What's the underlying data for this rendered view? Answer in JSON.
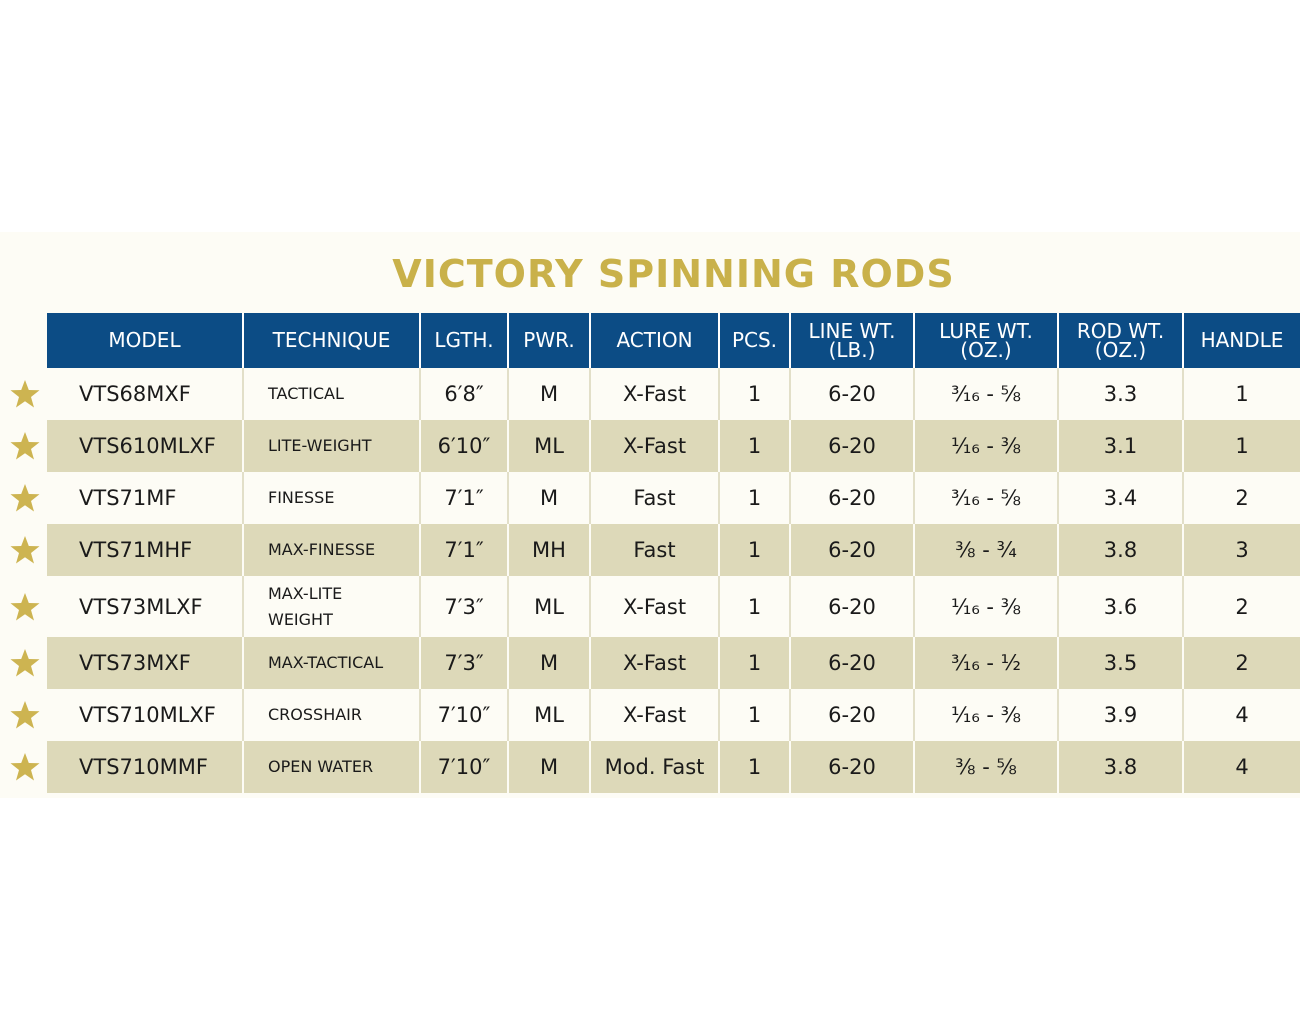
{
  "title": "VICTORY SPINNING RODS",
  "table": {
    "headers": [
      "MODEL",
      "TECHNIQUE",
      "LGTH.",
      "PWR.",
      "ACTION",
      "PCS.",
      "LINE WT.\n(LB.)",
      "LURE WT.\n(OZ.)",
      "ROD WT.\n(OZ.)",
      "HANDLE"
    ],
    "rows": [
      [
        "VTS68MXF",
        "TACTICAL",
        "6′8″",
        "M",
        "X-Fast",
        "1",
        "6-20",
        "³⁄₁₆ - ⅝",
        "3.3",
        "1"
      ],
      [
        "VTS610MLXF",
        "LITE-WEIGHT",
        "6′10″",
        "ML",
        "X-Fast",
        "1",
        "6-20",
        "¹⁄₁₆ - ⅜",
        "3.1",
        "1"
      ],
      [
        "VTS71MF",
        "FINESSE",
        "7′1″",
        "M",
        "Fast",
        "1",
        "6-20",
        "³⁄₁₆ - ⅝",
        "3.4",
        "2"
      ],
      [
        "VTS71MHF",
        "MAX-FINESSE",
        "7′1″",
        "MH",
        "Fast",
        "1",
        "6-20",
        "⅜ - ¾",
        "3.8",
        "3"
      ],
      [
        "VTS73MLXF",
        "MAX-LITE\nWEIGHT",
        "7′3″",
        "ML",
        "X-Fast",
        "1",
        "6-20",
        "¹⁄₁₆ - ⅜",
        "3.6",
        "2"
      ],
      [
        "VTS73MXF",
        "MAX-TACTICAL",
        "7′3″",
        "M",
        "X-Fast",
        "1",
        "6-20",
        "³⁄₁₆ - ½",
        "3.5",
        "2"
      ],
      [
        "VTS710MLXF",
        "CROSSHAIR",
        "7′10″",
        "ML",
        "X-Fast",
        "1",
        "6-20",
        "¹⁄₁₆ - ⅜",
        "3.9",
        "4"
      ],
      [
        "VTS710MMF",
        "OPEN WATER",
        "7′10″",
        "M",
        "Mod. Fast",
        "1",
        "6-20",
        "⅜ - ⅝",
        "3.8",
        "4"
      ]
    ]
  }
}
